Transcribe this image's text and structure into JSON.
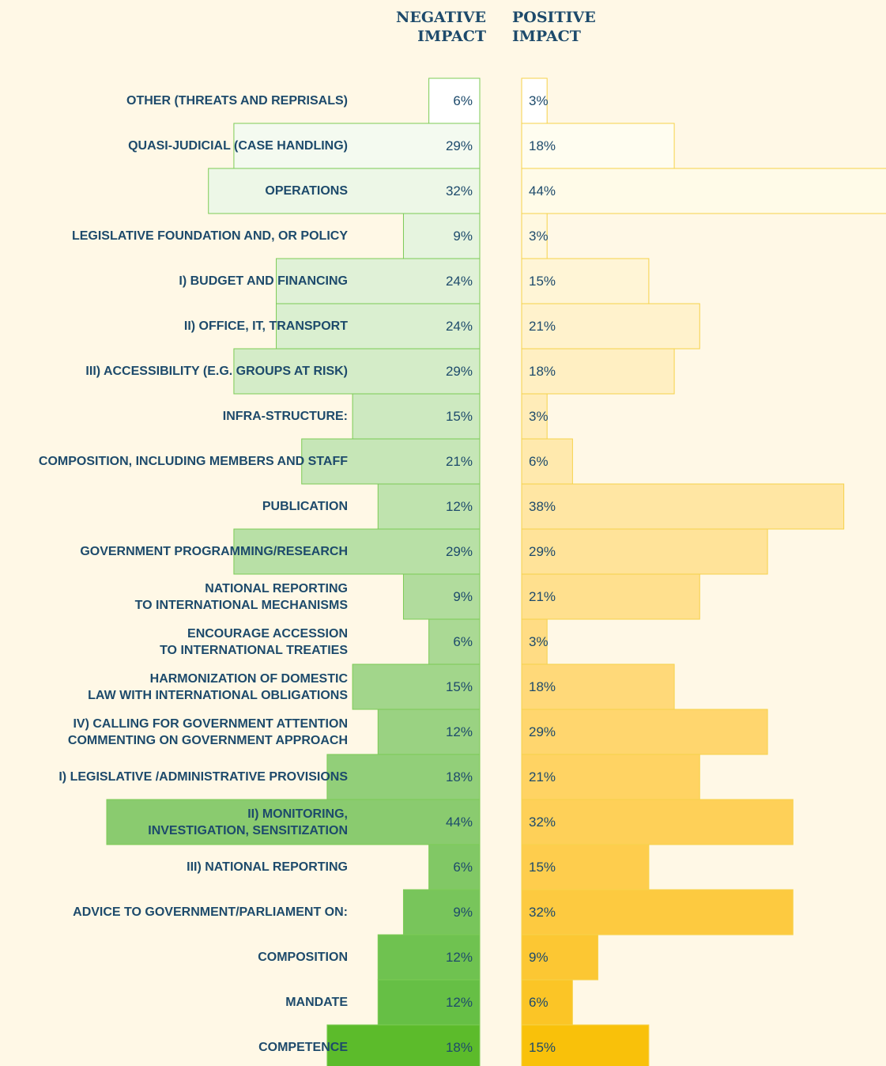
{
  "chart_data": {
    "type": "diverging_bar",
    "categories": [
      "OTHER (THREATS AND REPRISALS)",
      "QUASI-JUDICIAL (CASE HANDLING)",
      "OPERATIONS",
      "LEGISLATIVE FOUNDATION AND, OR POLICY",
      "I) BUDGET AND FINANCING",
      "II) OFFICE, IT, TRANSPORT",
      "III) ACCESSIBILITY (E.G. GROUPS AT RISK)",
      "INFRA-STRUCTURE:",
      "COMPOSITION, INCLUDING MEMBERS AND STAFF",
      "PUBLICATION",
      "GOVERNMENT PROGRAMMING/RESEARCH",
      "NATIONAL REPORTING\nTO INTERNATIONAL MECHANISMS",
      "ENCOURAGE ACCESSION\nTO INTERNATIONAL TREATIES",
      "HARMONIZATION OF DOMESTIC\nLAW WITH INTERNATIONAL OBLIGATIONS",
      "IV) CALLING FOR GOVERNMENT ATTENTION\nCOMMENTING ON GOVERNMENT APPROACH",
      "I) LEGISLATIVE /ADMINISTRATIVE PROVISIONS",
      "II) MONITORING,\nINVESTIGATION,  SENSITIZATION",
      "III) NATIONAL REPORTING",
      "ADVICE TO GOVERNMENT/PARLIAMENT ON:",
      "COMPOSITION",
      "MANDATE",
      "COMPETENCE"
    ],
    "series": [
      {
        "name": "NEGATIVE\nIMPACT",
        "side": "left",
        "border_color": "#7ccb55",
        "values": [
          6,
          29,
          32,
          9,
          24,
          24,
          29,
          15,
          21,
          12,
          29,
          9,
          6,
          15,
          12,
          18,
          44,
          6,
          9,
          12,
          12,
          18
        ],
        "value_labels": [
          "6%",
          "29%",
          "32%",
          "9%",
          "24%",
          "24%",
          "29%",
          "15%",
          "21%",
          "12%",
          "29%",
          "9%",
          "6%",
          "15%",
          "12%",
          "18%",
          "44%",
          "6%",
          "9%",
          "12%",
          "12%",
          "18%"
        ],
        "colors": [
          "#ffffff",
          "#f4faf0",
          "#edf7e7",
          "#e6f4df",
          "#e0f1d7",
          "#daefd0",
          "#d4ecc8",
          "#cde9c0",
          "#c6e6b7",
          "#bfe3ae",
          "#b8e0a6",
          "#b1dc9d",
          "#aad994",
          "#a2d68b",
          "#9ad282",
          "#92cf79",
          "#8acb6f",
          "#81c865",
          "#78c55b",
          "#6fc250",
          "#66bf45",
          "#5cbb2b"
        ]
      },
      {
        "name": "POSITIVE\nIMPACT",
        "side": "right",
        "border_color": "#f6d24a",
        "values": [
          3,
          18,
          44,
          3,
          15,
          21,
          18,
          3,
          6,
          38,
          29,
          21,
          3,
          18,
          29,
          21,
          32,
          15,
          32,
          9,
          6,
          15
        ],
        "value_labels": [
          "3%",
          "18%",
          "44%",
          "3%",
          "15%",
          "21%",
          "18%",
          "3%",
          "6%",
          "38%",
          "29%",
          "21%",
          "3%",
          "18%",
          "29%",
          "21%",
          "32%",
          "15%",
          "32%",
          "9%",
          "6%",
          "15%"
        ],
        "colors": [
          "#ffffff",
          "#fffdf0",
          "#fffbe8",
          "#fff8e0",
          "#fff5d6",
          "#fff2cc",
          "#ffefc2",
          "#ffecb8",
          "#ffe9ad",
          "#ffe6a3",
          "#ffe399",
          "#ffe08e",
          "#ffdc84",
          "#ffd979",
          "#ffd66e",
          "#ffd363",
          "#fed058",
          "#fecd4d",
          "#fdca40",
          "#fcc733",
          "#fbc526",
          "#f9c10a"
        ]
      }
    ]
  }
}
